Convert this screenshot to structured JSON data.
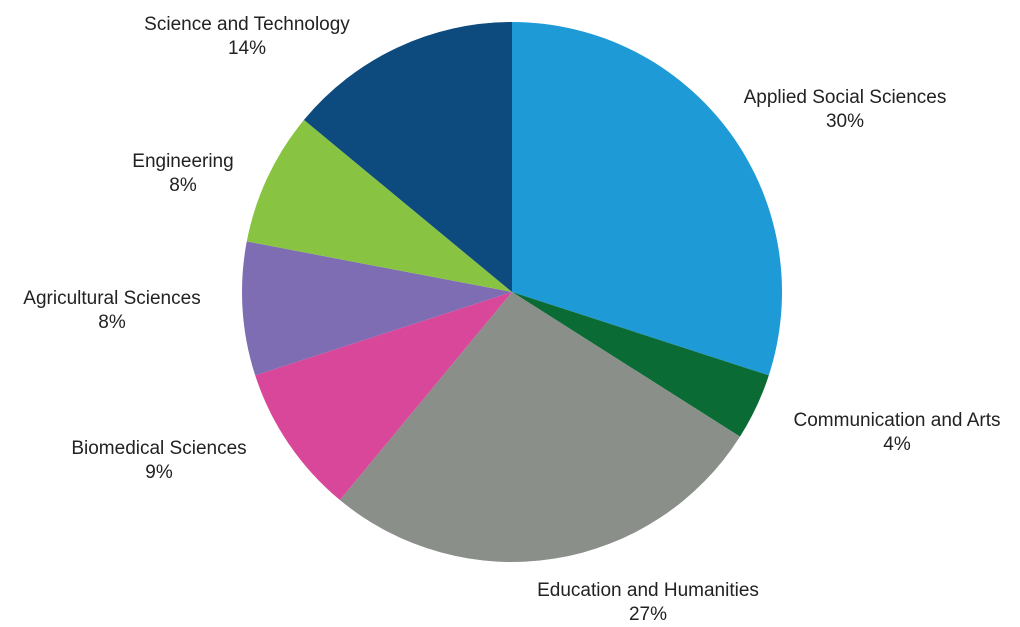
{
  "chart_data": {
    "type": "pie",
    "title": "",
    "start_angle": "12 o'clock",
    "direction": "clockwise",
    "legend": "none (labels placed around the pie)",
    "slices": [
      {
        "name": "Applied Social Sciences",
        "label": "30%",
        "value": 30,
        "color": "#1e9ad6"
      },
      {
        "name": "Communication and Arts",
        "label": "4%",
        "value": 4,
        "color": "#0b6b35"
      },
      {
        "name": "Education and Humanities",
        "label": "27%",
        "value": 27,
        "color": "#8a8f89"
      },
      {
        "name": "Biomedical Sciences",
        "label": "9%",
        "value": 9,
        "color": "#d8479a"
      },
      {
        "name": "Agricultural Sciences",
        "label": "8%",
        "value": 8,
        "color": "#7f6db3"
      },
      {
        "name": "Engineering",
        "label": "8%",
        "value": 8,
        "color": "#88c441"
      },
      {
        "name": "Science and Technology",
        "label": "14%",
        "value": 14,
        "color": "#0d4a7e"
      }
    ]
  }
}
